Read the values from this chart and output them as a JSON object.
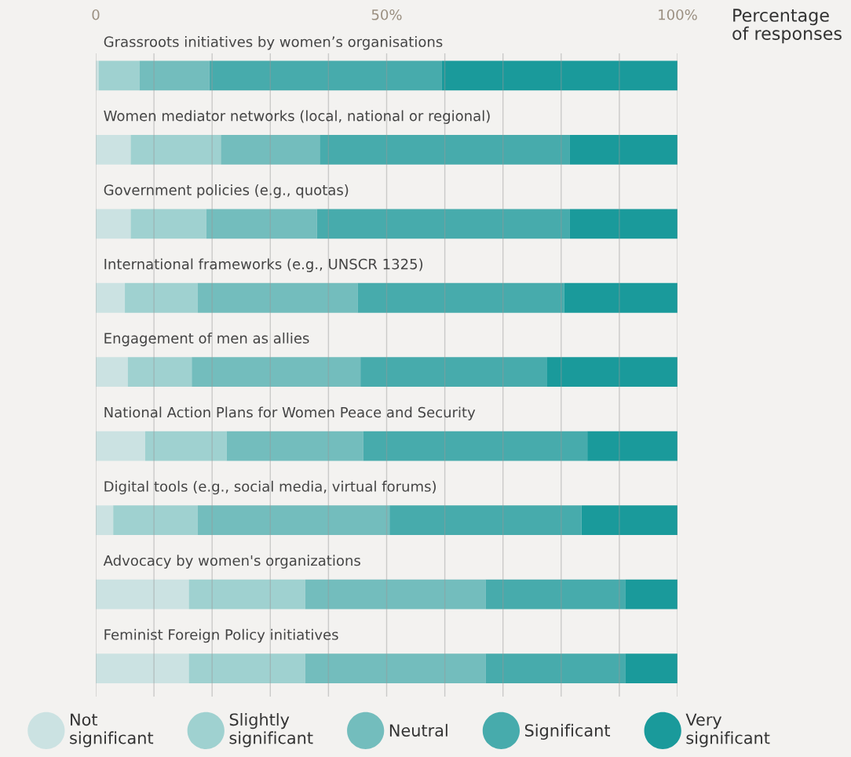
{
  "chart_data": {
    "type": "bar",
    "orientation": "horizontal",
    "stacked": true,
    "xlabel": "Percentage\nof responses",
    "categories": [
      "Grassroots initiatives by women’s organisations",
      "Women mediator networks (local, national or regional)",
      "Government policies (e.g., quotas)",
      "International frameworks (e.g., UNSCR 1325)",
      "Engagement of men as allies",
      "National Action Plans for Women Peace and Security",
      "Digital tools (e.g., social media, virtual forums)",
      "Advocacy by women's organizations",
      "Feminist Foreign Policy initiatives"
    ],
    "series": [
      {
        "name": "Not\nsignificant",
        "color": "#cbe2e2",
        "values": [
          0.5,
          6,
          6,
          5,
          5.5,
          8.5,
          3,
          16,
          16
        ]
      },
      {
        "name": "Slightly\nsignificant",
        "color": "#9fd1d0",
        "values": [
          7,
          15.5,
          13,
          12.5,
          11,
          14,
          14.5,
          20,
          20
        ]
      },
      {
        "name": "Neutral",
        "color": "#73bdbd",
        "values": [
          12,
          17,
          19,
          27.5,
          29,
          23.5,
          33,
          31,
          31
        ]
      },
      {
        "name": "Significant",
        "color": "#47abac",
        "values": [
          40,
          43,
          43.5,
          35.5,
          32,
          38.5,
          33,
          24,
          24
        ]
      },
      {
        "name": "Very\nsignificant",
        "color": "#1a9a9b",
        "values": [
          40.5,
          18.5,
          18.5,
          19.5,
          22.5,
          15.5,
          16.5,
          9,
          9
        ]
      }
    ],
    "xlim": [
      0,
      100
    ],
    "xticks": [
      0,
      {
        "value": 10,
        "label": null
      },
      {
        "value": 20,
        "label": null
      },
      {
        "value": 30,
        "label": null
      },
      {
        "value": 40,
        "label": null
      },
      {
        "value": 50,
        "label": "50%"
      },
      {
        "value": 60,
        "label": null
      },
      {
        "value": 70,
        "label": null
      },
      {
        "value": 80,
        "label": null
      },
      {
        "value": 90,
        "label": null
      },
      {
        "value": 100,
        "label": "100%"
      }
    ],
    "grid": "x",
    "legend": "bottom",
    "marker": "circle"
  }
}
